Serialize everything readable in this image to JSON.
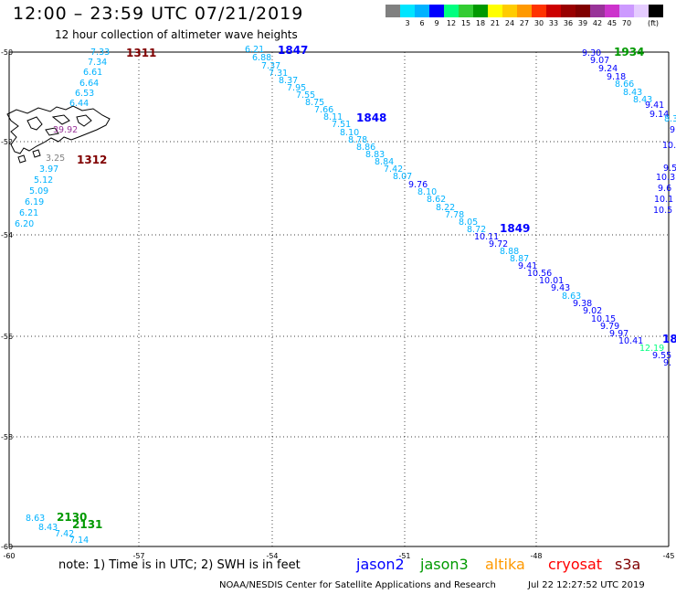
{
  "header": {
    "title": "12:00 – 23:59 UTC 07/21/2019",
    "subtitle": "12 hour collection of altimeter wave heights"
  },
  "color_legend": {
    "colors": [
      "#808080",
      "#00e5ff",
      "#00b2ff",
      "#0000ff",
      "#00ff7f",
      "#33cc33",
      "#009900",
      "#ffff00",
      "#ffcc00",
      "#ff9900",
      "#ff3300",
      "#cc0000",
      "#990000",
      "#800000",
      "#993399",
      "#cc33cc",
      "#cc99ff",
      "#e5ccff",
      "#000000"
    ],
    "labels": [
      "3",
      "6",
      "9",
      "12",
      "15",
      "18",
      "21",
      "24",
      "27",
      "30",
      "33",
      "36",
      "39",
      "42",
      "45",
      "70"
    ],
    "unit": "(ft)"
  },
  "map": {
    "lon_range": [
      -60,
      -45
    ],
    "lat_range": [
      -60,
      -50
    ],
    "lon_ticks": [
      "-60",
      "-57",
      "-54",
      "-51",
      "-48",
      "-45"
    ],
    "lat_ticks": [
      "-50",
      "-52",
      "-54",
      "-56",
      "-58",
      "-60"
    ],
    "points": [
      {
        "v": "7.33",
        "c": "#00b2ff"
      },
      {
        "v": "7.34",
        "c": "#00b2ff"
      },
      {
        "v": "6.61",
        "c": "#00b2ff"
      },
      {
        "v": "6.64",
        "c": "#00b2ff"
      },
      {
        "v": "6.53",
        "c": "#00b2ff"
      },
      {
        "v": "6.44",
        "c": "#00b2ff"
      },
      {
        "v": "39.92",
        "c": "#993399"
      },
      {
        "v": "3.25",
        "c": "#808080"
      },
      {
        "v": "3.97",
        "c": "#00b2ff"
      },
      {
        "v": "5.12",
        "c": "#00b2ff"
      },
      {
        "v": "5.09",
        "c": "#00b2ff"
      },
      {
        "v": "6.19",
        "c": "#00b2ff"
      },
      {
        "v": "6.21",
        "c": "#00b2ff"
      },
      {
        "v": "6.20",
        "c": "#00b2ff"
      },
      {
        "v": "6.21",
        "c": "#00b2ff"
      },
      {
        "v": "6.88",
        "c": "#00b2ff"
      },
      {
        "v": "7.37",
        "c": "#00b2ff"
      },
      {
        "v": "7.31",
        "c": "#00b2ff"
      },
      {
        "v": "8.37",
        "c": "#00b2ff"
      },
      {
        "v": "7.95",
        "c": "#00b2ff"
      },
      {
        "v": "7.55",
        "c": "#00b2ff"
      },
      {
        "v": "8.75",
        "c": "#00b2ff"
      },
      {
        "v": "7.66",
        "c": "#00b2ff"
      },
      {
        "v": "8.11",
        "c": "#00b2ff"
      },
      {
        "v": "7.51",
        "c": "#00b2ff"
      },
      {
        "v": "8.10",
        "c": "#00b2ff"
      },
      {
        "v": "8.78",
        "c": "#00b2ff"
      },
      {
        "v": "8.86",
        "c": "#00b2ff"
      },
      {
        "v": "8.83",
        "c": "#00b2ff"
      },
      {
        "v": "8.84",
        "c": "#00b2ff"
      },
      {
        "v": "7.42",
        "c": "#00b2ff"
      },
      {
        "v": "8.07",
        "c": "#00b2ff"
      },
      {
        "v": "9.76",
        "c": "#0000ff"
      },
      {
        "v": "8.10",
        "c": "#00b2ff"
      },
      {
        "v": "8.62",
        "c": "#00b2ff"
      },
      {
        "v": "8.22",
        "c": "#00b2ff"
      },
      {
        "v": "7.78",
        "c": "#00b2ff"
      },
      {
        "v": "8.05",
        "c": "#00b2ff"
      },
      {
        "v": "8.72",
        "c": "#00b2ff"
      },
      {
        "v": "10.11",
        "c": "#0000ff"
      },
      {
        "v": "9.72",
        "c": "#0000ff"
      },
      {
        "v": "8.88",
        "c": "#00b2ff"
      },
      {
        "v": "8.87",
        "c": "#00b2ff"
      },
      {
        "v": "9.41",
        "c": "#0000ff"
      },
      {
        "v": "10.56",
        "c": "#0000ff"
      },
      {
        "v": "10.01",
        "c": "#0000ff"
      },
      {
        "v": "9.43",
        "c": "#0000ff"
      },
      {
        "v": "8.63",
        "c": "#00b2ff"
      },
      {
        "v": "9.38",
        "c": "#0000ff"
      },
      {
        "v": "9.02",
        "c": "#0000ff"
      },
      {
        "v": "10.15",
        "c": "#0000ff"
      },
      {
        "v": "9.79",
        "c": "#0000ff"
      },
      {
        "v": "9.97",
        "c": "#0000ff"
      },
      {
        "v": "10.41",
        "c": "#0000ff"
      },
      {
        "v": "9.30",
        "c": "#0000ff"
      },
      {
        "v": "9.07",
        "c": "#0000ff"
      },
      {
        "v": "9.24",
        "c": "#0000ff"
      },
      {
        "v": "9.18",
        "c": "#0000ff"
      },
      {
        "v": "8.66",
        "c": "#00b2ff"
      },
      {
        "v": "8.43",
        "c": "#00b2ff"
      },
      {
        "v": "8.43",
        "c": "#00b2ff"
      },
      {
        "v": "9.41",
        "c": "#0000ff"
      },
      {
        "v": "9.14",
        "c": "#0000ff"
      },
      {
        "v": "8.3",
        "c": "#00b2ff"
      },
      {
        "v": "9",
        "c": "#0000ff"
      },
      {
        "v": "10.",
        "c": "#0000ff"
      },
      {
        "v": "9.5",
        "c": "#0000ff"
      },
      {
        "v": "10.3",
        "c": "#0000ff"
      },
      {
        "v": "9.6",
        "c": "#0000ff"
      },
      {
        "v": "10.1",
        "c": "#0000ff"
      },
      {
        "v": "10.5",
        "c": "#0000ff"
      },
      {
        "v": "12.19",
        "c": "#00ff7f"
      },
      {
        "v": "9.55",
        "c": "#0000ff"
      },
      {
        "v": "9.",
        "c": "#0000ff"
      },
      {
        "v": "8.63",
        "c": "#00b2ff"
      },
      {
        "v": "8.43",
        "c": "#00b2ff"
      },
      {
        "v": "7.42",
        "c": "#00b2ff"
      },
      {
        "v": "7.14",
        "c": "#00b2ff"
      }
    ],
    "time_labels": [
      {
        "t": "1311",
        "c": "#800000"
      },
      {
        "t": "1312",
        "c": "#800000"
      },
      {
        "t": "1847",
        "c": "#0000ff"
      },
      {
        "t": "1848",
        "c": "#0000ff"
      },
      {
        "t": "1849",
        "c": "#0000ff"
      },
      {
        "t": "18",
        "c": "#0000ff"
      },
      {
        "t": "1934",
        "c": "#009900"
      },
      {
        "t": "2130",
        "c": "#009900"
      },
      {
        "t": "2131",
        "c": "#009900"
      }
    ]
  },
  "footer": {
    "note": "note: 1) Time is in UTC; 2) SWH is in feet",
    "satellites": [
      {
        "name": "jason2",
        "color": "#0000ff"
      },
      {
        "name": "jason3",
        "color": "#009900"
      },
      {
        "name": "altika",
        "color": "#ff9900"
      },
      {
        "name": "cryosat",
        "color": "#ff0000"
      },
      {
        "name": "s3a",
        "color": "#800000"
      }
    ],
    "credit": "NOAA/NESDIS Center for Satellite Applications and Research",
    "timestamp": "Jul 22 12:27:52 UTC 2019"
  }
}
